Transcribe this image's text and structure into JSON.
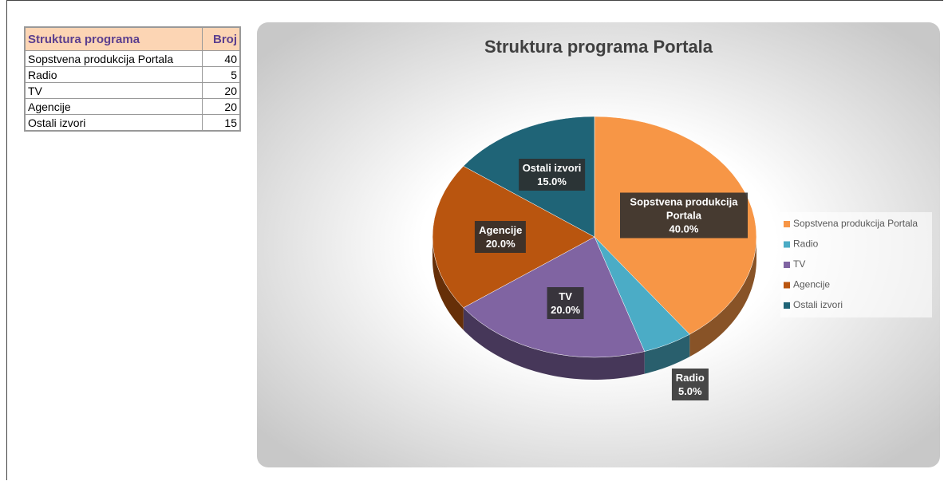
{
  "table": {
    "header": [
      "Struktura programa",
      "Broj"
    ],
    "rows": [
      [
        "Sopstvena produkcija Portala",
        40
      ],
      [
        "Radio",
        5
      ],
      [
        "TV",
        20
      ],
      [
        "Agencije",
        20
      ],
      [
        "Ostali izvori",
        15
      ]
    ]
  },
  "chart_data": {
    "type": "pie",
    "title": "Struktura programa Portala",
    "categories": [
      "Sopstvena produkcija Portala",
      "Radio",
      "TV",
      "Agencije",
      "Ostali izvori"
    ],
    "values": [
      40,
      5,
      20,
      20,
      15
    ],
    "value_labels": [
      "40.0%",
      "5.0%",
      "20.0%",
      "20.0%",
      "15.0%"
    ],
    "colors": [
      "#f79646",
      "#4bacc6",
      "#8064a2",
      "#b9550f",
      "#1f6477"
    ],
    "legend": "right"
  }
}
